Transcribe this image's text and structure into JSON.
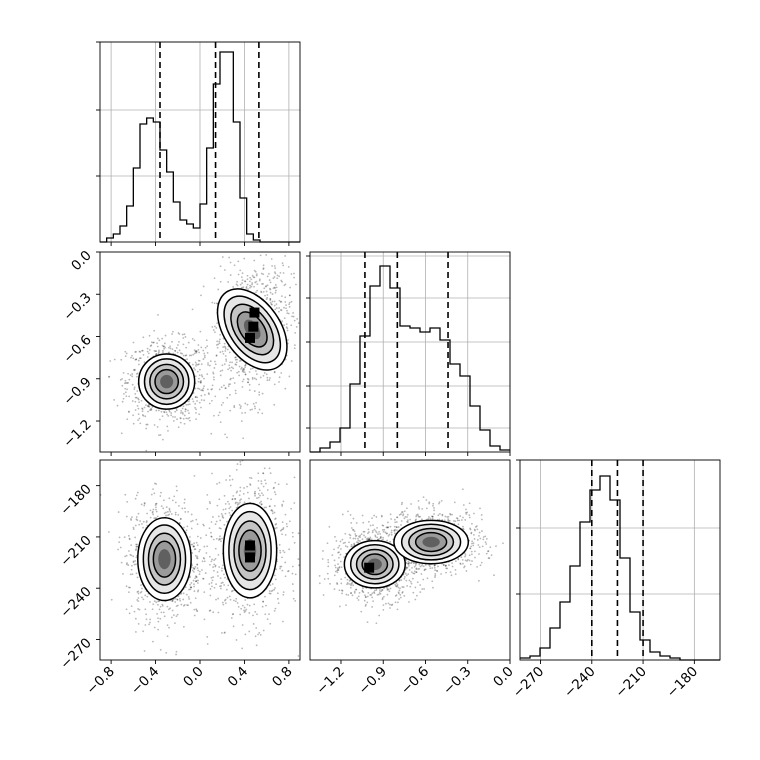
{
  "chart_data": {
    "type": "corner",
    "title": "",
    "parameters": [
      {
        "label": "",
        "range": [
          -0.9,
          0.9
        ],
        "ticks": [
          -0.8,
          -0.4,
          0.0,
          0.4,
          0.8
        ],
        "tick_labels": [
          "−0.8",
          "−0.4",
          "0.0",
          "0.4",
          "0.8"
        ]
      },
      {
        "label": "",
        "range": [
          -1.42,
          0.0
        ],
        "ticks": [
          -1.2,
          -0.9,
          -0.6,
          -0.3,
          0.0
        ],
        "tick_labels": [
          "−1.2",
          "−0.9",
          "−0.6",
          "−0.3",
          "0.0"
        ]
      },
      {
        "label": "",
        "range": [
          -282,
          -165
        ],
        "ticks": [
          -270,
          -240,
          -210,
          -180
        ],
        "tick_labels": [
          "−270",
          "−240",
          "−210",
          "−180"
        ]
      }
    ],
    "histograms": [
      {
        "parameter": 0,
        "quantiles": [
          -0.36,
          0.14,
          0.53
        ],
        "bins": {
          "start": -0.9,
          "width": 0.06,
          "counts": [
            0,
            2,
            4,
            8,
            18,
            37,
            59,
            62,
            60,
            46,
            35,
            20,
            11,
            9,
            7,
            19,
            47,
            79,
            95,
            95,
            60,
            22,
            4,
            1,
            0,
            0,
            0,
            0,
            0,
            0
          ]
        },
        "ylim": [
          0,
          100
        ],
        "yticks": [
          33,
          66,
          100
        ]
      },
      {
        "parameter": 1,
        "quantiles": [
          -1.03,
          -0.8,
          -0.44
        ],
        "bins": {
          "start": -1.42,
          "width": 0.071,
          "counts": [
            0,
            2,
            5,
            12,
            34,
            58,
            83,
            93,
            82,
            63,
            62,
            60,
            62,
            56,
            44,
            38,
            23,
            11,
            3,
            1
          ]
        },
        "ylim": [
          0,
          100
        ],
        "yticks": [
          12,
          33,
          55,
          77,
          98
        ]
      },
      {
        "parameter": 2,
        "quantiles": [
          -240,
          -225,
          -210
        ],
        "bins": {
          "start": -282,
          "width": 5.85,
          "counts": [
            1,
            2,
            6,
            16,
            29,
            47,
            69,
            85,
            92,
            80,
            51,
            24,
            10,
            4,
            2,
            1,
            0,
            0,
            0,
            0
          ]
        },
        "ylim": [
          0,
          100
        ],
        "yticks": [
          33,
          66,
          100
        ]
      }
    ],
    "contour_panels": [
      {
        "x_param": 0,
        "y_param": 1,
        "clusters": [
          {
            "center": [
              -0.3,
              -0.92
            ],
            "radii": [
              0.21,
              0.17
            ],
            "angle_deg": 0
          },
          {
            "center": [
              0.47,
              -0.55
            ],
            "radii": [
              0.21,
              0.28
            ],
            "angle_deg": 0.3
          }
        ],
        "peak_cells": [
          [
            0.48,
            -0.53
          ],
          [
            0.49,
            -0.43
          ],
          [
            0.45,
            -0.61
          ]
        ]
      },
      {
        "x_param": 0,
        "y_param": 2,
        "clusters": [
          {
            "center": [
              -0.32,
              -223
            ],
            "radii": [
              0.2,
              21
            ],
            "angle_deg": 0
          },
          {
            "center": [
              0.45,
              -218
            ],
            "radii": [
              0.2,
              24
            ],
            "angle_deg": 0
          }
        ],
        "peak_cells": [
          [
            0.45,
            -222
          ],
          [
            0.45,
            -215
          ]
        ]
      },
      {
        "x_param": 1,
        "y_param": 2,
        "clusters": [
          {
            "center": [
              -0.96,
              -226
            ],
            "radii": [
              0.18,
              12
            ],
            "angle_deg": 0
          },
          {
            "center": [
              -0.56,
              -213
            ],
            "radii": [
              0.22,
              11
            ],
            "angle_deg": 0
          }
        ],
        "peak_cells": [
          [
            -1.0,
            -228
          ]
        ]
      }
    ],
    "grid": true,
    "legend": "none"
  }
}
